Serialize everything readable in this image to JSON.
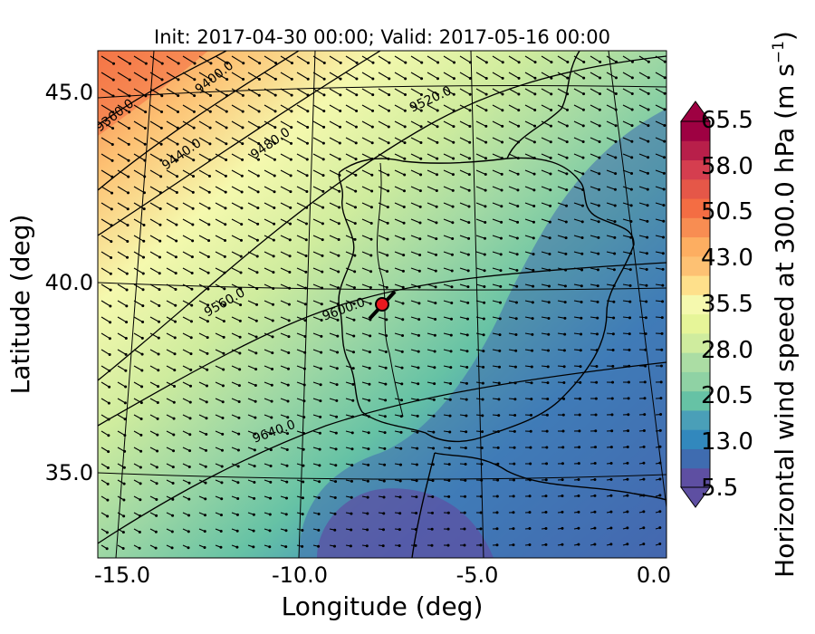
{
  "chart_data": {
    "type": "heatmap",
    "title": "Init: 2017-04-30 00:00; Valid: 2017-05-16 00:00",
    "xlabel": "Longitude (deg)",
    "ylabel": "Latitude (deg)",
    "colorbar_label": "Horizontal wind speed at 300.0 hPa (m s",
    "colorbar_label_exp": "−1",
    "colorbar_label_close": ")",
    "x_ticks": [
      "-15.0",
      "-10.0",
      "-5.0",
      "0.0"
    ],
    "y_ticks": [
      "35.0",
      "40.0",
      "45.0"
    ],
    "colorbar_ticks": [
      "5.5",
      "13.0",
      "20.5",
      "28.0",
      "35.5",
      "43.0",
      "50.5",
      "58.0",
      "65.5"
    ],
    "colorbar_colors": [
      "#5e4fa2",
      "#3f6cb0",
      "#3288bd",
      "#4a9fb8",
      "#66c2a5",
      "#8fd2a4",
      "#abdda4",
      "#cfec9e",
      "#e6f598",
      "#f5f9ae",
      "#fee08b",
      "#fdc173",
      "#fdae61",
      "#f88d52",
      "#f46d43",
      "#e55748",
      "#d53e4f",
      "#b81f4a",
      "#9e0142"
    ],
    "contour_labels": [
      "9360.0",
      "9400.0",
      "9440.0",
      "9480.0",
      "9520.0",
      "9560.0",
      "9600.0",
      "9640.0"
    ],
    "marker": {
      "lon": -7.7,
      "lat": 39.35,
      "color": "#e8191f"
    },
    "xlim": [
      -16,
      0.5
    ],
    "ylim": [
      32.7,
      46.2
    ]
  }
}
